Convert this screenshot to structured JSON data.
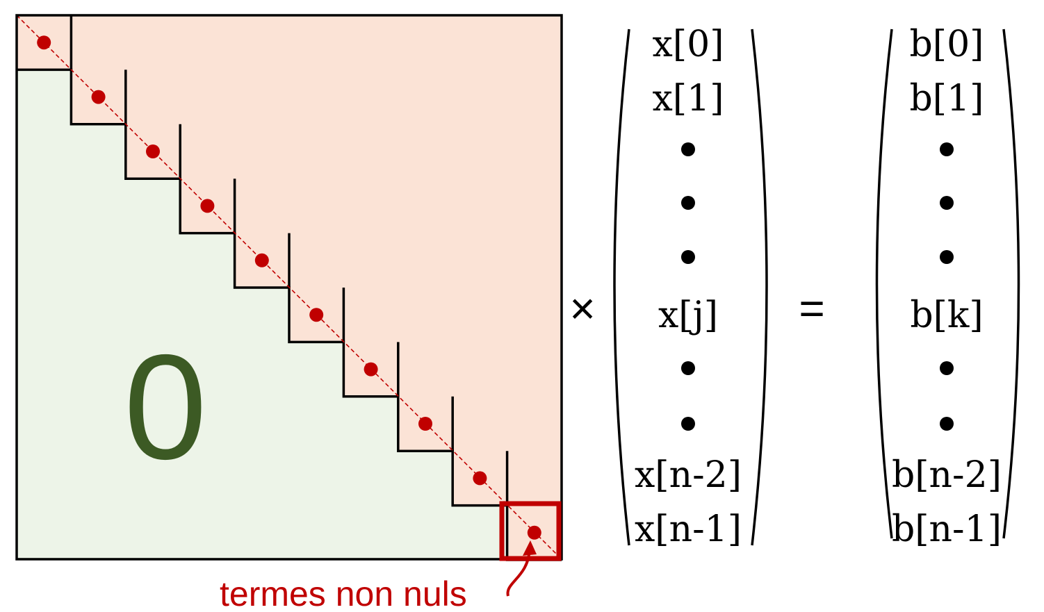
{
  "matrix": {
    "zero_label": "0",
    "annotation": "termes non nuls",
    "diagonal_blocks": 10,
    "colors": {
      "upper_fill": "#fbe3d6",
      "lower_fill": "#edf4e8",
      "zero_text": "#3c5a24",
      "accent": "#c00000",
      "border": "#000000"
    }
  },
  "operators": {
    "times": "×",
    "equals": "="
  },
  "vector_x": [
    "x[0]",
    "x[1]",
    "•",
    "•",
    "•",
    "x[j]",
    "•",
    "•",
    "x[n-2]",
    "x[n-1]"
  ],
  "vector_b": [
    "b[0]",
    "b[1]",
    "•",
    "•",
    "•",
    "b[k]",
    "•",
    "•",
    "b[n-2]",
    "b[n-1]"
  ]
}
